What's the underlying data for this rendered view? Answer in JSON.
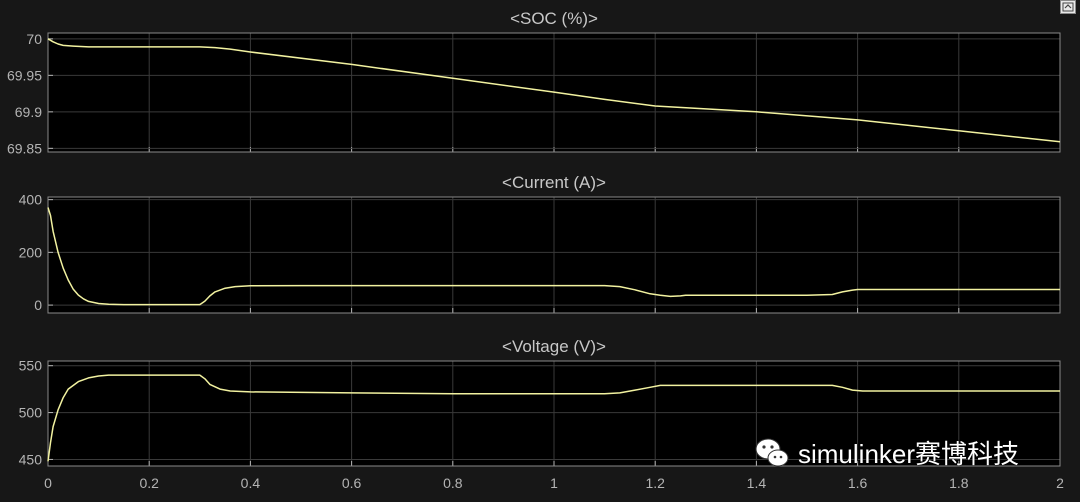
{
  "colors": {
    "background": "#171717",
    "axes_face": "#000000",
    "grid": "#3a3a3a",
    "text": "#b4b4b4",
    "title": "#c8c8c8",
    "signal": "#f2f2a0"
  },
  "toolbar": {
    "restore_icon": "undock-icon"
  },
  "watermark": {
    "text": "simulinker赛博科技",
    "logo_icon": "wechat-logo"
  },
  "chart_data": [
    {
      "type": "line",
      "title": "<SOC (%)>",
      "xlim": [
        0,
        2
      ],
      "ylim": [
        69.845,
        70.008
      ],
      "yticks": [
        69.85,
        69.9,
        69.95,
        70
      ],
      "ytick_labels": [
        "69.85",
        "69.9",
        "69.95",
        "70"
      ],
      "xticks": [
        0,
        0.2,
        0.4,
        0.6,
        0.8,
        1,
        1.2,
        1.4,
        1.6,
        1.8,
        2
      ],
      "show_xtick_labels": false,
      "grid": true,
      "x": [
        0,
        0.01,
        0.02,
        0.03,
        0.05,
        0.08,
        0.1,
        0.2,
        0.3,
        0.33,
        0.36,
        0.4,
        0.6,
        0.8,
        1.0,
        1.1,
        1.2,
        1.4,
        1.6,
        1.8,
        2.0
      ],
      "y": [
        70.0,
        69.996,
        69.993,
        69.991,
        69.99,
        69.989,
        69.989,
        69.989,
        69.989,
        69.988,
        69.986,
        69.982,
        69.965,
        69.946,
        69.927,
        69.917,
        69.908,
        69.9,
        69.889,
        69.874,
        69.859
      ]
    },
    {
      "type": "line",
      "title": "<Current (A)>",
      "xlim": [
        0,
        2
      ],
      "ylim": [
        -30,
        410
      ],
      "yticks": [
        0,
        200,
        400
      ],
      "ytick_labels": [
        "0",
        "200",
        "400"
      ],
      "xticks": [
        0,
        0.2,
        0.4,
        0.6,
        0.8,
        1,
        1.2,
        1.4,
        1.6,
        1.8,
        2
      ],
      "show_xtick_labels": false,
      "grid": true,
      "x": [
        0,
        0.005,
        0.01,
        0.02,
        0.03,
        0.04,
        0.05,
        0.06,
        0.07,
        0.08,
        0.1,
        0.12,
        0.15,
        0.2,
        0.25,
        0.3,
        0.31,
        0.32,
        0.33,
        0.35,
        0.37,
        0.4,
        0.5,
        0.8,
        1.0,
        1.1,
        1.13,
        1.16,
        1.19,
        1.21,
        1.23,
        1.25,
        1.26,
        1.3,
        1.4,
        1.5,
        1.55,
        1.57,
        1.59,
        1.6,
        1.7,
        2.0
      ],
      "y": [
        370,
        340,
        280,
        200,
        140,
        95,
        60,
        38,
        24,
        14,
        6,
        3,
        2,
        2,
        2,
        2,
        15,
        35,
        50,
        64,
        70,
        73,
        74,
        74,
        74,
        74,
        70,
        58,
        43,
        37,
        33,
        35,
        37,
        37,
        37,
        37,
        40,
        50,
        57,
        59,
        59,
        59
      ]
    },
    {
      "type": "line",
      "title": "<Voltage (V)>",
      "xlim": [
        0,
        2
      ],
      "ylim": [
        443,
        555
      ],
      "yticks": [
        450,
        500,
        550
      ],
      "ytick_labels": [
        "450",
        "500",
        "550"
      ],
      "xticks": [
        0,
        0.2,
        0.4,
        0.6,
        0.8,
        1,
        1.2,
        1.4,
        1.6,
        1.8,
        2
      ],
      "xtick_labels": [
        "0",
        "0.2",
        "0.4",
        "0.6",
        "0.8",
        "1",
        "1.2",
        "1.4",
        "1.6",
        "1.8",
        "2"
      ],
      "show_xtick_labels": true,
      "grid": true,
      "x": [
        0,
        0.005,
        0.01,
        0.02,
        0.03,
        0.04,
        0.06,
        0.08,
        0.1,
        0.12,
        0.15,
        0.2,
        0.3,
        0.31,
        0.32,
        0.34,
        0.36,
        0.4,
        0.6,
        0.8,
        1.0,
        1.1,
        1.13,
        1.16,
        1.19,
        1.21,
        1.24,
        1.3,
        1.4,
        1.5,
        1.55,
        1.57,
        1.59,
        1.61,
        1.7,
        2.0
      ],
      "y": [
        448,
        468,
        485,
        503,
        516,
        525,
        533,
        537,
        539,
        540,
        540,
        540,
        540,
        536,
        530,
        525,
        523,
        522,
        521,
        520,
        520,
        520,
        521,
        524,
        527,
        529,
        529,
        529,
        529,
        529,
        529,
        527,
        524,
        523,
        523,
        523
      ]
    }
  ]
}
